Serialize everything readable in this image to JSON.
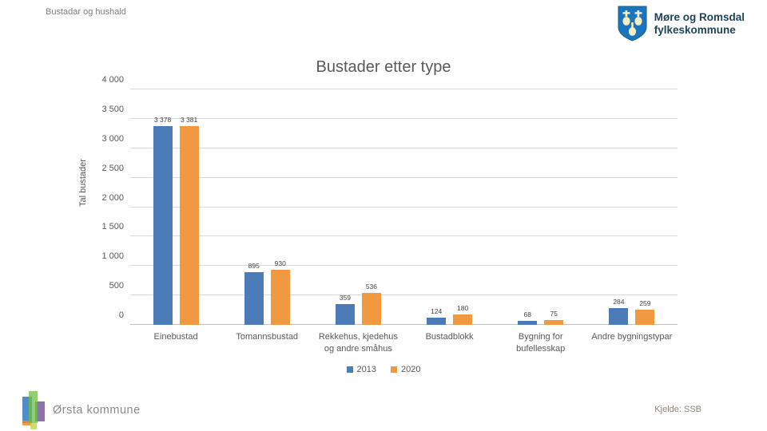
{
  "header": {
    "breadcrumb": "Bustadar og hushald",
    "org_name": "Møre og Romsdal\nfylkeskommune"
  },
  "chart_data": {
    "type": "bar",
    "title": "Bustader etter type",
    "ylabel": "Tal bustader",
    "xlabel": "",
    "ylim": [
      0,
      4000
    ],
    "ytick_step": 500,
    "grid": true,
    "legend_position": "bottom",
    "categories": [
      "Einebustad",
      "Tomannsbustad",
      "Rekkehus, kjedehus og andre småhus",
      "Bustadblokk",
      "Bygning for bufellesskap",
      "Andre bygningstypar"
    ],
    "series": [
      {
        "name": "2013",
        "color": "#4c7cb8",
        "values": [
          3378,
          895,
          359,
          124,
          68,
          284
        ]
      },
      {
        "name": "2020",
        "color": "#f09941",
        "values": [
          3381,
          930,
          536,
          180,
          75,
          259
        ]
      }
    ]
  },
  "footer": {
    "municipality": "Ørsta kommune",
    "source": "Kjelde: SSB"
  },
  "colors": {
    "series_2013": "#4c7cb8",
    "series_2020": "#f09941",
    "gridline": "#d9d9d9",
    "text_gray": "#595959",
    "shield_blue": "#1c75bc",
    "shield_gold": "#f5eec2"
  }
}
